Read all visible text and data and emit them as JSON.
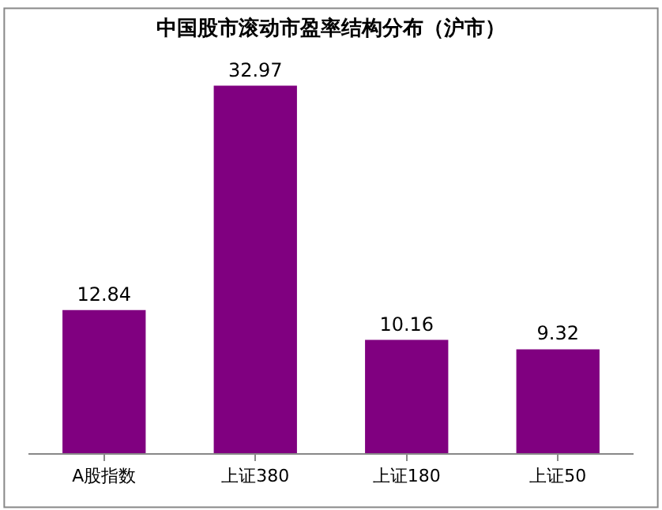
{
  "chart_data": {
    "type": "bar",
    "title": "中国股市滚动市盈率结构分布（沪市）",
    "categories": [
      "A股指数",
      "上证380",
      "上证180",
      "上证50"
    ],
    "values": [
      12.84,
      32.97,
      10.16,
      9.32
    ],
    "color": "#800080",
    "value_labels": [
      "12.84",
      "32.97",
      "10.16",
      "9.32"
    ],
    "legend": false,
    "tick_labels": "x"
  }
}
